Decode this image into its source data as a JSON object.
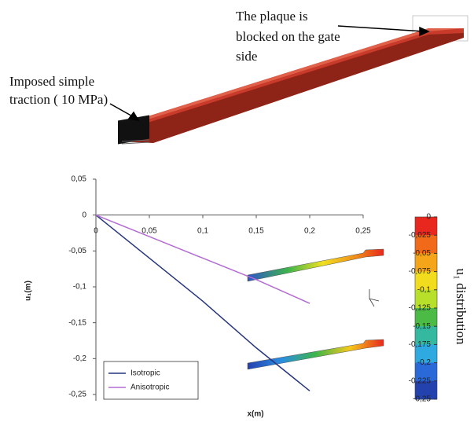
{
  "annotations": {
    "blocked": [
      "The plaque is",
      "blocked on the gate",
      "side"
    ],
    "traction": [
      "Imposed simple",
      "traction ( 10 MPa)"
    ]
  },
  "chart_data": {
    "type": "line",
    "x_label": "x(m)",
    "y_label": "u₁(m)",
    "xlim": [
      0,
      0.25
    ],
    "ylim": [
      -0.25,
      0.05
    ],
    "xticks": [
      {
        "value": 0,
        "label": "0"
      },
      {
        "value": 0.05,
        "label": "0,05"
      },
      {
        "value": 0.1,
        "label": "0,1"
      },
      {
        "value": 0.15,
        "label": "0,15"
      },
      {
        "value": 0.2,
        "label": "0,2"
      },
      {
        "value": 0.25,
        "label": "0,25"
      }
    ],
    "yticks": [
      {
        "value": 0.05,
        "label": "0,05"
      },
      0,
      {
        "value": -0.05,
        "label": "-0,05"
      },
      {
        "value": -0.1,
        "label": "-0,1"
      },
      {
        "value": -0.15,
        "label": "-0,15"
      },
      {
        "value": -0.2,
        "label": "-0,2"
      },
      {
        "value": -0.25,
        "label": "-0,25"
      }
    ],
    "x": [
      0,
      0.05,
      0.1,
      0.15,
      0.2
    ],
    "series": [
      {
        "name": "Isotropic",
        "color": "#27357f",
        "values": [
          0,
          -0.06,
          -0.12,
          -0.185,
          -0.245
        ]
      },
      {
        "name": "Anisotropic",
        "color": "#b46cd2",
        "values": [
          0,
          -0.03,
          -0.06,
          -0.09,
          -0.123
        ]
      }
    ],
    "legend": "lower left",
    "grid": false
  },
  "colorbar": {
    "label": "u₁ distribution",
    "ticks": [
      0,
      {
        "value": -0.025,
        "label": "-0,025"
      },
      {
        "value": -0.05,
        "label": "-0,05"
      },
      {
        "value": -0.075,
        "label": "-0,075"
      },
      {
        "value": -0.1,
        "label": "-0,1"
      },
      {
        "value": -0.125,
        "label": "-0,125"
      },
      {
        "value": -0.15,
        "label": "-0,15"
      },
      {
        "value": -0.175,
        "label": "-0,175"
      },
      {
        "value": -0.2,
        "label": "-0,2"
      },
      {
        "value": -0.225,
        "label": "-0,225"
      },
      {
        "value": -0.25,
        "label": "-0,25"
      }
    ],
    "colors": [
      "#e8281e",
      "#f06a1a",
      "#f5a51a",
      "#f2dc1e",
      "#b8e02a",
      "#4cbb45",
      "#35b8a0",
      "#2eaae0",
      "#2a6ad8",
      "#2342ae"
    ]
  }
}
